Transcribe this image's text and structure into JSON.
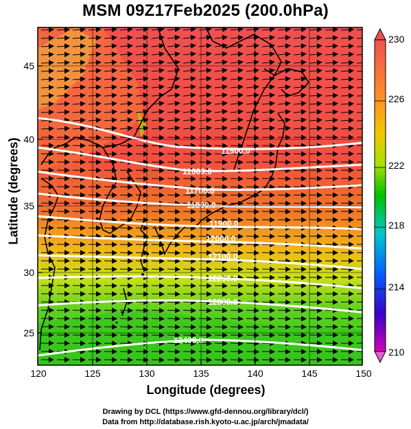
{
  "title": "MSM 09Z17Feb2025 (200.0hPa)",
  "axes": {
    "xlabel": "Longitude (degrees)",
    "ylabel": "Latitude  (degrees)",
    "xticks": [
      "120",
      "125",
      "130",
      "135",
      "140",
      "145",
      "150"
    ],
    "yticks": [
      "25",
      "30",
      "35",
      "40",
      "45"
    ],
    "xrange": [
      120,
      150
    ],
    "yrange": [
      22.4,
      47.6
    ],
    "grid": true
  },
  "colorbar": {
    "ticks": [
      "230",
      "226",
      "222",
      "218",
      "214",
      "210"
    ],
    "range": [
      210,
      230
    ],
    "palette": [
      "#d400b5",
      "#3a00c8",
      "#0060ff",
      "#00c8c8",
      "#00c000",
      "#a8e000",
      "#f0c800",
      "#ff8c28",
      "#f05050"
    ]
  },
  "contours": {
    "labels": [
      "11500.0",
      "11600.0",
      "11700.0",
      "11800.0",
      "11900.0",
      "12000.0",
      "12100.0",
      "12200.0",
      "12300.0",
      "12400.0"
    ]
  },
  "footer": {
    "line1": "Drawing by DCL (https://www.gfd-dennou.org/library/dcl/)",
    "line2": "Data from http://database.rish.kyoto-u.ac.jp/arch/jmadata/"
  }
}
